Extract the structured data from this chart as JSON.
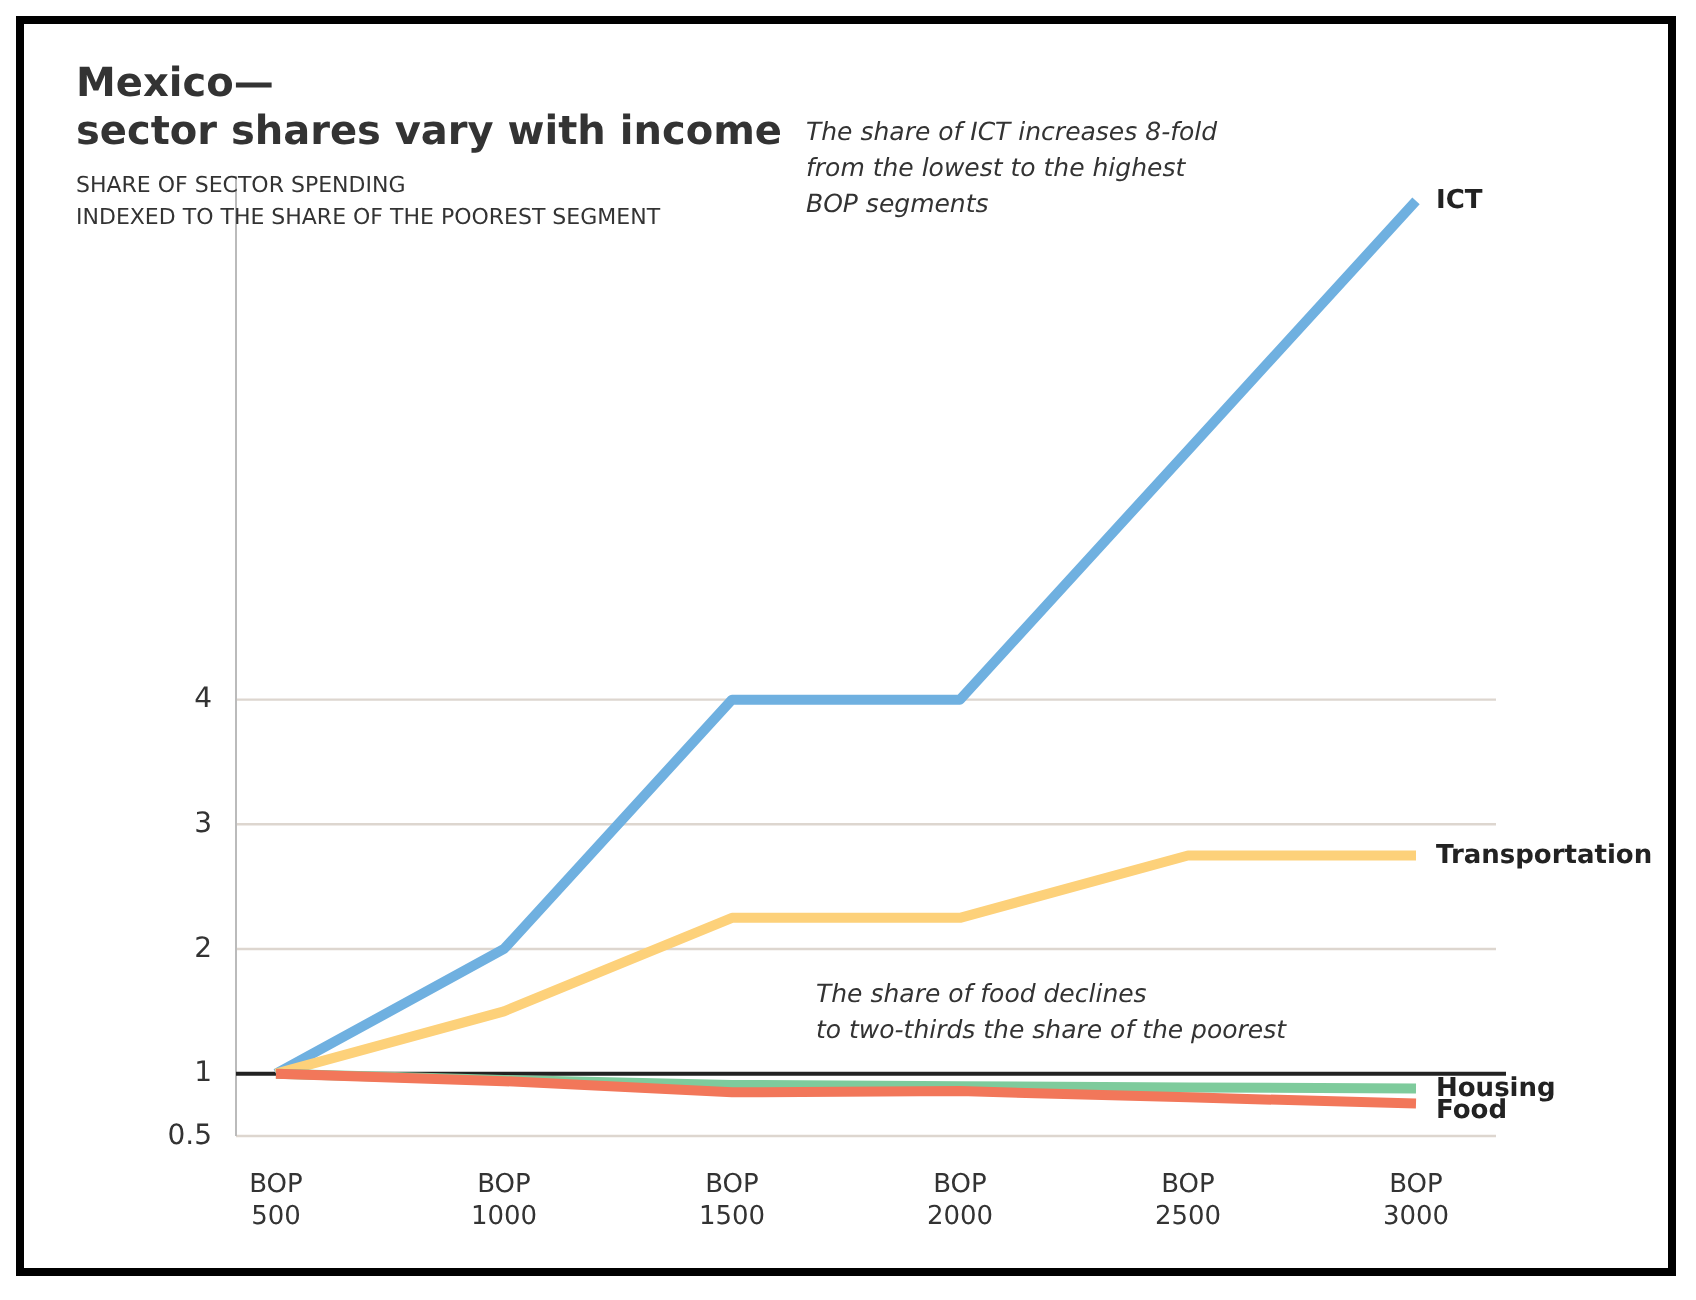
{
  "chart_data": {
    "type": "line",
    "title": "Mexico—\nsector shares vary with income",
    "subtitle": "SHARE OF SECTOR SPENDING\nINDEXED TO THE SHARE OF THE POOREST SEGMENT",
    "categories": [
      "BOP\n500",
      "BOP\n1000",
      "BOP\n1500",
      "BOP\n2000",
      "BOP\n2500",
      "BOP\n3000"
    ],
    "series": [
      {
        "name": "ICT",
        "color": "#6fb0e0",
        "values": [
          1,
          2,
          4,
          4,
          6,
          8
        ]
      },
      {
        "name": "Transportation",
        "color": "#fdd17a",
        "values": [
          1,
          1.5,
          2.25,
          2.25,
          2.75,
          2.75
        ]
      },
      {
        "name": "Housing",
        "color": "#7ecb9c",
        "values": [
          1,
          0.95,
          0.91,
          0.9,
          0.89,
          0.88
        ]
      },
      {
        "name": "Food",
        "color": "#f2775a",
        "values": [
          1,
          0.94,
          0.85,
          0.86,
          0.81,
          0.76
        ]
      }
    ],
    "ylim": [
      0.5,
      8.2
    ],
    "yticks": [
      0.5,
      1,
      2,
      3,
      4
    ],
    "grid": "y",
    "legend": false,
    "ref_lines": [
      {
        "axis": "y",
        "value": 1,
        "color": "#222222"
      }
    ],
    "annotations": [
      "The share of ICT increases 8-fold\nfrom the lowest to the highest\nBOP segments",
      "The share of food declines\nto two-thirds the share of the poorest"
    ]
  }
}
